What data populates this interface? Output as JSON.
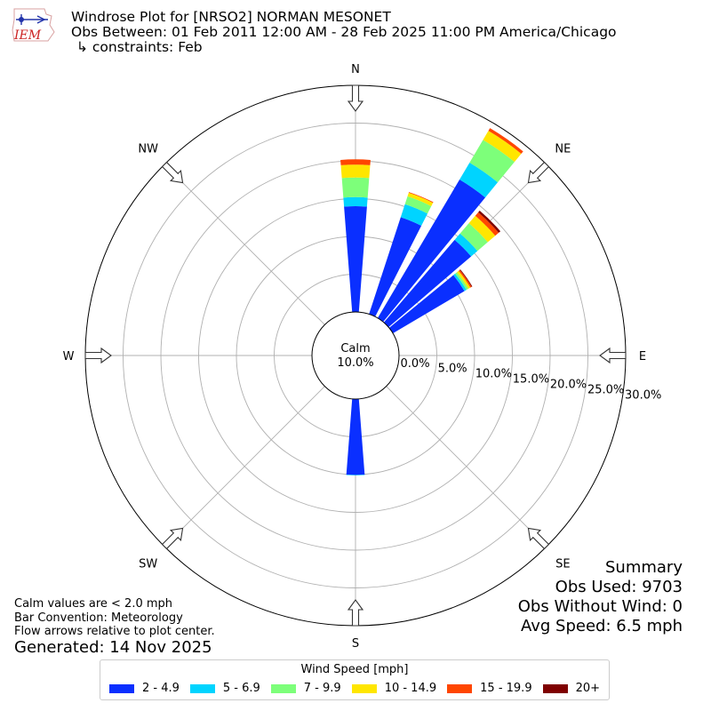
{
  "header": {
    "title": "Windrose Plot for [NRSO2] NORMAN MESONET",
    "subtitle": "Obs Between: 01 Feb 2011 12:00 AM - 28 Feb 2025 11:00 PM America/Chicago",
    "constraints": "↳ constraints: Feb",
    "logo_text": "IEM"
  },
  "summary": {
    "title": "Summary",
    "obs_used": "Obs Used: 9703",
    "obs_without_wind": "Obs Without Wind: 0",
    "avg_speed": "Avg Speed: 6.5 mph"
  },
  "notes": {
    "calm_note": "Calm values are < 2.0 mph",
    "bar_convention": "Bar Convention: Meteorology",
    "flow_note": "Flow arrows relative to plot center.",
    "generated": "Generated: 14 Nov 2025"
  },
  "legend": {
    "title": "Wind Speed [mph]"
  },
  "chart_data": {
    "type": "windrose",
    "calm_label": "Calm",
    "calm_value": "10.0%",
    "radial_ticks": [
      "0.0%",
      "5.0%",
      "10.0%",
      "15.0%",
      "20.0%",
      "25.0%",
      "30.0%"
    ],
    "radial_max": 30,
    "calm_radius": 10,
    "directions": [
      {
        "label": "N",
        "angle": 0
      },
      {
        "label": "NE",
        "angle": 45
      },
      {
        "label": "E",
        "angle": 90
      },
      {
        "label": "SE",
        "angle": 135
      },
      {
        "label": "S",
        "angle": 180
      },
      {
        "label": "SW",
        "angle": 225
      },
      {
        "label": "W",
        "angle": 270
      },
      {
        "label": "NW",
        "angle": 315
      }
    ],
    "bins": [
      {
        "name": "2 - 4.9",
        "color": "#0a2fff"
      },
      {
        "name": "5 - 6.9",
        "color": "#00d4ff"
      },
      {
        "name": "7 - 9.9",
        "color": "#7dff7a"
      },
      {
        "name": "10 - 14.9",
        "color": "#ffe600"
      },
      {
        "name": "15 - 19.9",
        "color": "#ff4600"
      },
      {
        "name": "20+",
        "color": "#7f0000"
      }
    ],
    "sectors": [
      {
        "angle": 0,
        "cumulative": [
          14.0,
          15.2,
          17.8,
          19.5,
          20.2,
          20.2
        ]
      },
      {
        "angle": 22.5,
        "cumulative": [
          13.5,
          15.3,
          16.4,
          16.9,
          17.0,
          17.0
        ]
      },
      {
        "angle": 35,
        "cumulative": [
          21.3,
          23.9,
          27.4,
          28.8,
          29.2,
          29.2
        ]
      },
      {
        "angle": 45,
        "cumulative": [
          14.4,
          15.5,
          17.3,
          18.6,
          19.2,
          19.5
        ]
      },
      {
        "angle": 55,
        "cumulative": [
          11.0,
          11.3,
          11.6,
          11.9,
          12.1,
          12.2
        ]
      },
      {
        "angle": 180,
        "cumulative": [
          10.05,
          10.1,
          10.1,
          10.1,
          10.1,
          10.1
        ]
      }
    ]
  }
}
